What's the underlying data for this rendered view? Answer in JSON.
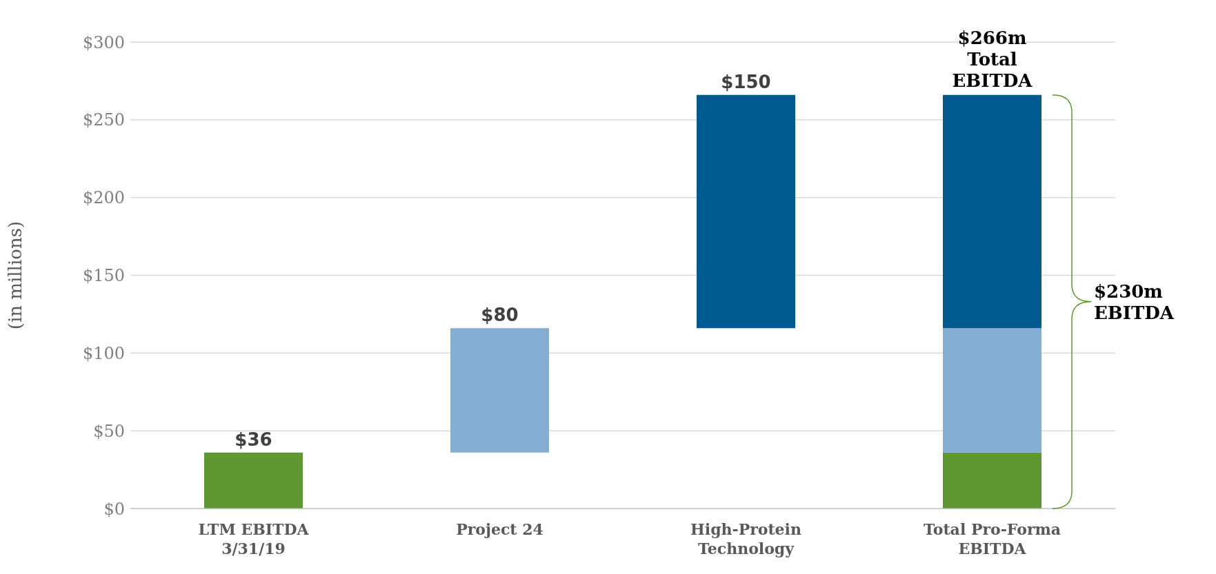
{
  "chart_data": {
    "type": "bar",
    "ylabel": "(in millions)",
    "categories": [
      "LTM EBITDA\n3/31/19",
      "Project 24",
      "High-Protein\nTechnology",
      "Total Pro-Forma\nEBITDA"
    ],
    "series": [
      {
        "color": "#5f9732",
        "values": [
          36,
          null,
          null,
          36
        ],
        "base": [
          0,
          null,
          null,
          0
        ],
        "value_labels": [
          "$36",
          null,
          null,
          null
        ]
      },
      {
        "color": "#85aed2",
        "values": [
          null,
          80,
          null,
          80
        ],
        "base": [
          null,
          36,
          null,
          36
        ],
        "value_labels": [
          null,
          "$80",
          null,
          null
        ]
      },
      {
        "color": "#005a8f",
        "values": [
          null,
          null,
          150,
          150
        ],
        "base": [
          null,
          null,
          116,
          116
        ],
        "value_labels": [
          null,
          null,
          "$150",
          null
        ]
      }
    ],
    "ylim": [
      0,
      300
    ],
    "yticks": [
      {
        "value": 0,
        "label": "$0"
      },
      {
        "value": 50,
        "label": "$50"
      },
      {
        "value": 100,
        "label": "$100"
      },
      {
        "value": 150,
        "label": "$150"
      },
      {
        "value": 200,
        "label": "$200"
      },
      {
        "value": 250,
        "label": "$250"
      },
      {
        "value": 300,
        "label": "$300"
      }
    ],
    "grid": "y",
    "annotations": [
      {
        "text": "$266m\nTotal\nEBITDA",
        "x": "Total Pro-Forma\nEBITDA",
        "y": 266
      },
      "$230m\nEBITDA"
    ]
  }
}
